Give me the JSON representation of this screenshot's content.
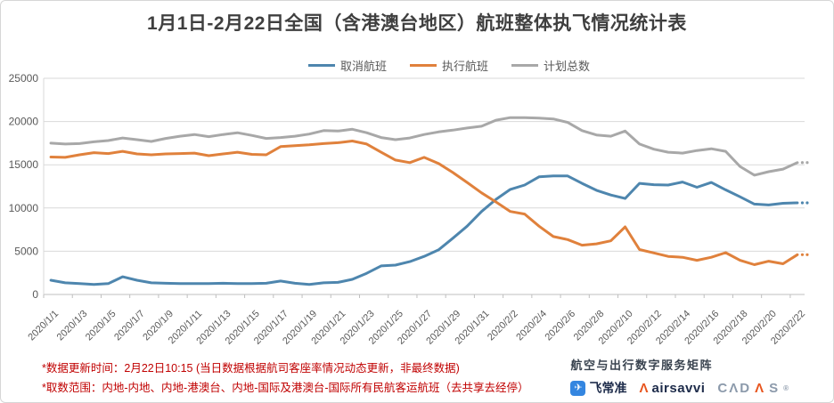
{
  "title": "1月1日-2月22日全国（含港澳台地区）航班整体执飞情况统计表",
  "chart_data": {
    "type": "line",
    "x": [
      "2020/1/1",
      "2020/1/2",
      "2020/1/3",
      "2020/1/4",
      "2020/1/5",
      "2020/1/6",
      "2020/1/7",
      "2020/1/8",
      "2020/1/9",
      "2020/1/10",
      "2020/1/11",
      "2020/1/12",
      "2020/1/13",
      "2020/1/14",
      "2020/1/15",
      "2020/1/16",
      "2020/1/17",
      "2020/1/18",
      "2020/1/19",
      "2020/1/20",
      "2020/1/21",
      "2020/1/22",
      "2020/1/23",
      "2020/1/24",
      "2020/1/25",
      "2020/1/26",
      "2020/1/27",
      "2020/1/28",
      "2020/1/29",
      "2020/1/30",
      "2020/1/31",
      "2020/2/1",
      "2020/2/2",
      "2020/2/3",
      "2020/2/4",
      "2020/2/5",
      "2020/2/6",
      "2020/2/7",
      "2020/2/8",
      "2020/2/9",
      "2020/2/10",
      "2020/2/11",
      "2020/2/12",
      "2020/2/13",
      "2020/2/14",
      "2020/2/15",
      "2020/2/16",
      "2020/2/17",
      "2020/2/18",
      "2020/2/19",
      "2020/2/20",
      "2020/2/21",
      "2020/2/22"
    ],
    "series": [
      {
        "name": "取消航班",
        "color": "#4e86ae",
        "values": [
          1650,
          1350,
          1250,
          1150,
          1250,
          2050,
          1650,
          1350,
          1300,
          1250,
          1250,
          1250,
          1300,
          1250,
          1250,
          1300,
          1550,
          1300,
          1150,
          1350,
          1400,
          1750,
          2450,
          3300,
          3400,
          3800,
          4400,
          5150,
          6500,
          7900,
          9600,
          11000,
          12150,
          12650,
          13600,
          13700,
          13700,
          12850,
          12050,
          11500,
          11100,
          12850,
          12700,
          12650,
          13000,
          12400,
          12950,
          12100,
          11300,
          10450,
          10350,
          10550,
          10600
        ]
      },
      {
        "name": "执行航班",
        "color": "#e0813c",
        "values": [
          15900,
          15850,
          16150,
          16400,
          16300,
          16550,
          16250,
          16150,
          16250,
          16300,
          16350,
          16050,
          16250,
          16450,
          16200,
          16150,
          17100,
          17200,
          17300,
          17450,
          17550,
          17750,
          17400,
          16450,
          15550,
          15250,
          15850,
          15150,
          14100,
          12950,
          11750,
          10700,
          9600,
          9300,
          7900,
          6700,
          6350,
          5700,
          5850,
          6200,
          7820,
          5200,
          4800,
          4400,
          4300,
          3950,
          4300,
          4840,
          3950,
          3450,
          3850,
          3550,
          4600
        ]
      },
      {
        "name": "计划总数",
        "color": "#a8a8a8",
        "values": [
          17500,
          17400,
          17450,
          17650,
          17800,
          18100,
          17900,
          17700,
          18050,
          18300,
          18500,
          18250,
          18500,
          18700,
          18400,
          18050,
          18150,
          18300,
          18550,
          18950,
          18900,
          19100,
          18700,
          18150,
          17900,
          18100,
          18500,
          18800,
          19000,
          19250,
          19450,
          20150,
          20450,
          20450,
          20400,
          20300,
          19900,
          18950,
          18450,
          18300,
          18900,
          17400,
          16800,
          16450,
          16350,
          16650,
          16850,
          16550,
          14800,
          13800,
          14200,
          14500,
          15250
        ]
      }
    ],
    "ylim": [
      0,
      25000
    ],
    "y_ticks": [
      0,
      5000,
      10000,
      15000,
      20000,
      25000
    ],
    "x_label_every": 2,
    "grid": true,
    "legend_position": "top",
    "last_point_provisional_dots": 2
  },
  "footnotes": {
    "line1": "*数据更新时间：2月22日10:15 (当日数据根据航司客座率情况动态更新，非最终数据)",
    "line2": "*取数范围：内地-内地、内地-港澳台、内地-国际及港澳台-国际所有民航客运航班（去共享去经停）"
  },
  "branding": {
    "tagline": "航空与出行数字服务矩阵",
    "variflight_icon_glyph": "✈",
    "variflight": "飞常准",
    "airsavvi_icon_glyph": "Λ",
    "airsavvi": "airsavvi",
    "cadas_part1": "CΛD",
    "cadas_part2": "Λ",
    "cadas_part3": "S",
    "cadas_reg": "®"
  },
  "style_colors": {
    "gridline": "#d9d9d9",
    "axis": "#bfbfbf",
    "tick_text": "#595959",
    "title_text": "#3f3f3f",
    "footnote_red": "#c00000"
  }
}
